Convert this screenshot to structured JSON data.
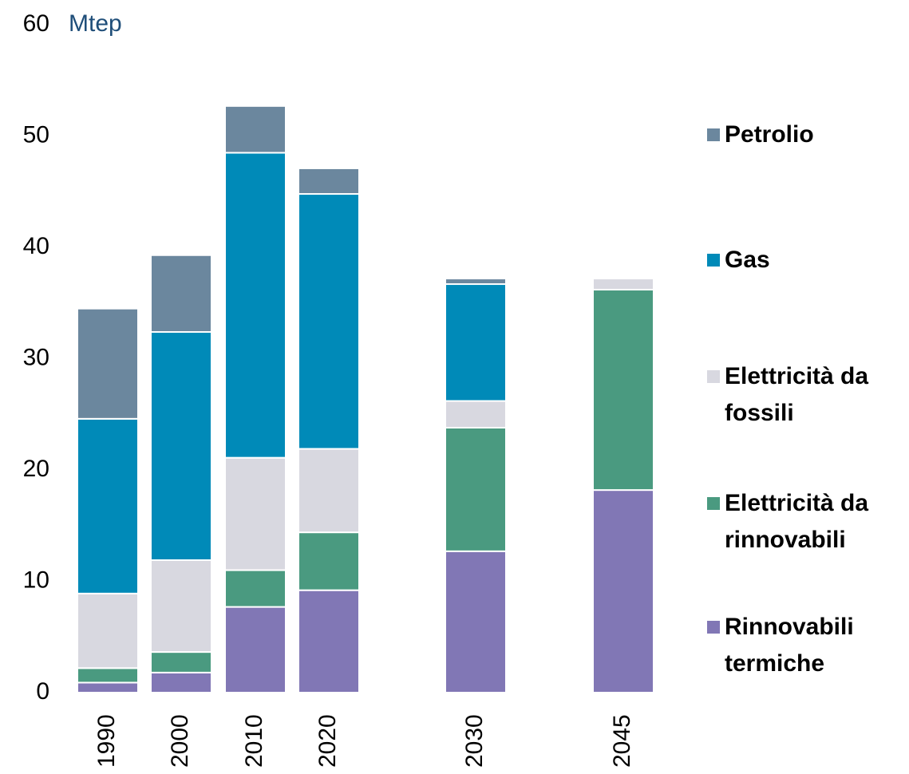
{
  "chart_data": {
    "type": "bar",
    "stacked": true,
    "y_unit": "Mtep",
    "categories": [
      "1990",
      "2000",
      "2010",
      "2020",
      "2030",
      "2045"
    ],
    "series": [
      {
        "name": "Rinnovabili termiche",
        "color": "#8177b5",
        "values": [
          0.9,
          1.8,
          7.7,
          9.2,
          12.7,
          18.2
        ]
      },
      {
        "name": "Elettricità da rinnovabili",
        "color": "#4a9a80",
        "values": [
          1.3,
          1.85,
          3.3,
          5.2,
          11.1,
          18.0
        ]
      },
      {
        "name": "Elettricità da fossili",
        "color": "#d8d8e0",
        "values": [
          6.7,
          8.25,
          10.1,
          7.5,
          2.4,
          1.0
        ]
      },
      {
        "name": "Gas",
        "color": "#008ab8",
        "values": [
          15.7,
          20.5,
          27.4,
          22.9,
          10.5,
          null
        ]
      },
      {
        "name": "Petrolio",
        "color": "#6b879e",
        "values": [
          9.9,
          6.9,
          4.2,
          2.3,
          0.5,
          null
        ]
      }
    ],
    "ylim": [
      0,
      60
    ],
    "yticks": [
      0,
      10,
      20,
      30,
      40,
      50,
      60
    ],
    "grid": false
  }
}
